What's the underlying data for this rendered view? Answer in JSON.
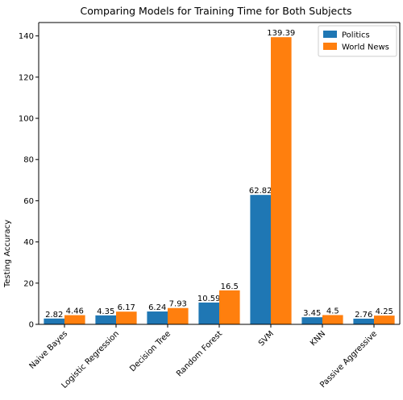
{
  "chart_data": {
    "type": "bar",
    "title": "Comparing Models for Training Time for Both Subjects",
    "xlabel": "",
    "ylabel": "Testing Accuracy",
    "ylim": [
      0,
      146.5
    ],
    "yticks": [
      0,
      20,
      40,
      60,
      80,
      100,
      120,
      140
    ],
    "categories": [
      "Naive Bayes",
      "Logistic Regression",
      "Decision Tree",
      "Random Forest",
      "SVM",
      "KNN",
      "Passive Aggressive"
    ],
    "series": [
      {
        "name": "Politics",
        "color": "#1f77b4",
        "values": [
          2.82,
          4.35,
          6.24,
          10.59,
          62.82,
          3.45,
          2.76
        ]
      },
      {
        "name": "World News",
        "color": "#ff7f0e",
        "values": [
          4.46,
          6.17,
          7.93,
          16.5,
          139.39,
          4.5,
          4.25
        ]
      }
    ],
    "data_labels": true,
    "grid": false,
    "legend": "top-right"
  }
}
